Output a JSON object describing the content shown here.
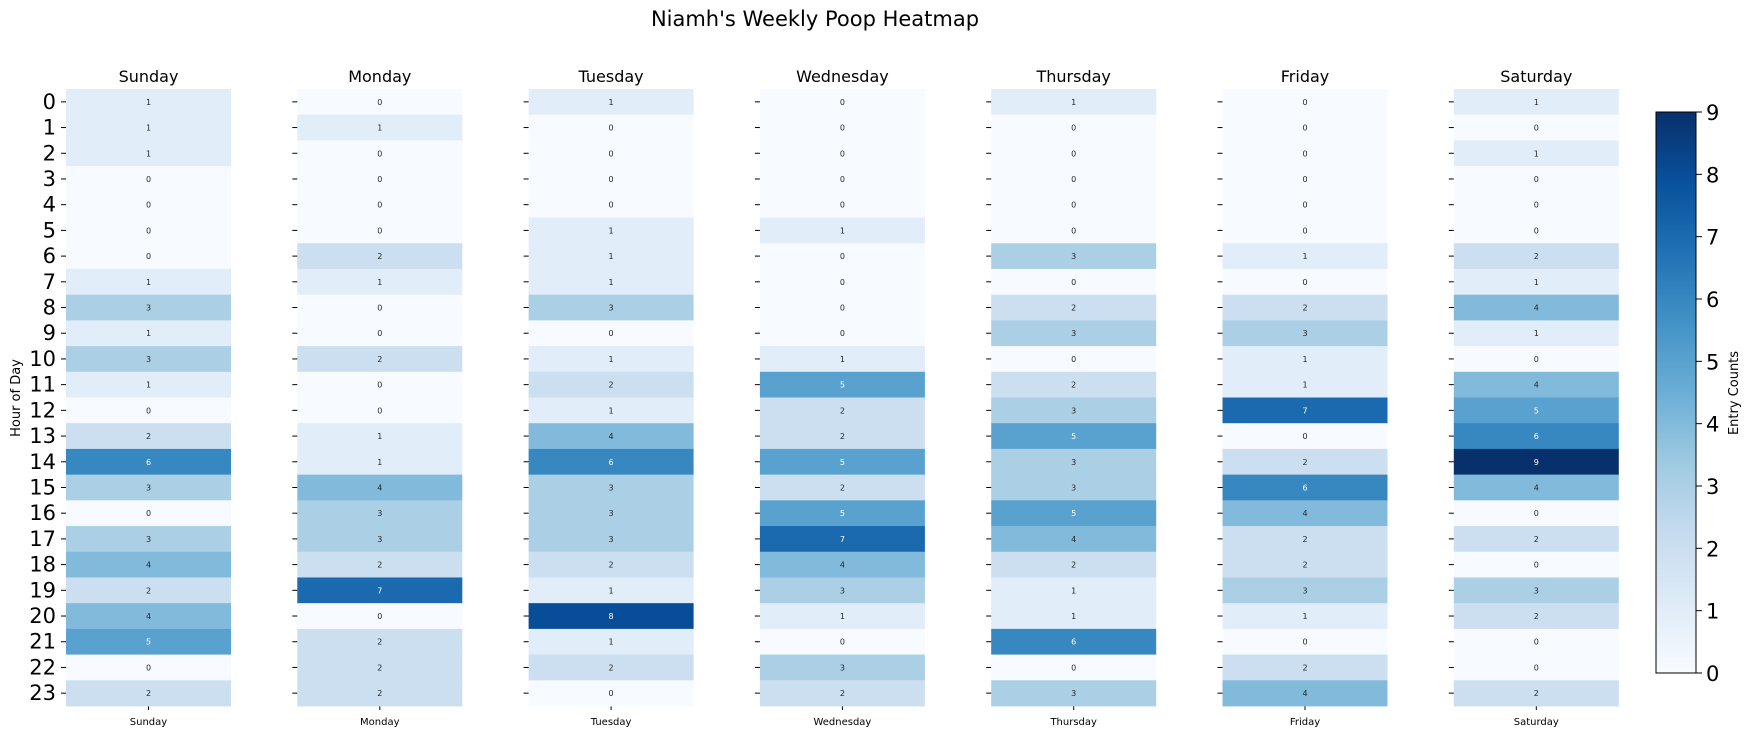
{
  "chart_data": {
    "type": "heatmap",
    "title": "Niamh's Weekly Poop Heatmap",
    "ylabel": "Hour of Day",
    "days": [
      "Sunday",
      "Monday",
      "Tuesday",
      "Wednesday",
      "Thursday",
      "Friday",
      "Saturday"
    ],
    "hours": [
      "0",
      "1",
      "2",
      "3",
      "4",
      "5",
      "6",
      "7",
      "8",
      "9",
      "10",
      "11",
      "12",
      "13",
      "14",
      "15",
      "16",
      "17",
      "18",
      "19",
      "20",
      "21",
      "22",
      "23"
    ],
    "values": {
      "Sunday": [
        1,
        1,
        1,
        0,
        0,
        0,
        0,
        1,
        3,
        1,
        3,
        1,
        0,
        2,
        6,
        3,
        0,
        3,
        4,
        2,
        4,
        5,
        0,
        2
      ],
      "Monday": [
        0,
        1,
        0,
        0,
        0,
        0,
        2,
        1,
        0,
        0,
        2,
        0,
        0,
        1,
        1,
        4,
        3,
        3,
        2,
        7,
        0,
        2,
        2,
        2
      ],
      "Tuesday": [
        1,
        0,
        0,
        0,
        0,
        1,
        1,
        1,
        3,
        0,
        1,
        2,
        1,
        4,
        6,
        3,
        3,
        3,
        2,
        1,
        8,
        1,
        2,
        0
      ],
      "Wednesday": [
        0,
        0,
        0,
        0,
        0,
        1,
        0,
        0,
        0,
        0,
        1,
        5,
        2,
        2,
        5,
        2,
        5,
        7,
        4,
        3,
        1,
        0,
        3,
        2
      ],
      "Thursday": [
        1,
        0,
        0,
        0,
        0,
        0,
        3,
        0,
        2,
        3,
        0,
        2,
        3,
        5,
        3,
        3,
        5,
        4,
        2,
        1,
        1,
        6,
        0,
        3
      ],
      "Friday": [
        0,
        0,
        0,
        0,
        0,
        0,
        1,
        0,
        2,
        3,
        1,
        1,
        7,
        0,
        2,
        6,
        4,
        2,
        2,
        3,
        1,
        0,
        2,
        4
      ],
      "Saturday": [
        1,
        0,
        1,
        0,
        0,
        0,
        2,
        1,
        4,
        1,
        0,
        4,
        5,
        6,
        9,
        4,
        0,
        2,
        0,
        3,
        2,
        0,
        0,
        2
      ]
    },
    "colorbar": {
      "label": "Entry Counts",
      "min": 0,
      "max": 9,
      "ticks": [
        "0",
        "1",
        "2",
        "3",
        "4",
        "5",
        "6",
        "7",
        "8",
        "9"
      ],
      "colormap": "Blues",
      "low_color": "#f7fbff",
      "high_color": "#08306b"
    }
  }
}
